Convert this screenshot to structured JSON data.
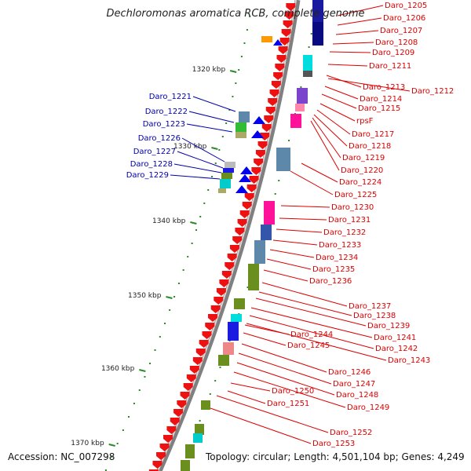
{
  "title": "Dechloromonas aromatica RCB, complete genome",
  "footer": {
    "accession_label": "Accession:",
    "accession": "NC_007298",
    "topology_label": "Topology:",
    "topology": "circular",
    "length_label": "Length:",
    "length": "4,501,104 bp",
    "genes_label": "Genes:",
    "genes": "4,249"
  },
  "colors": {
    "forward_strand": "#ee1111",
    "reverse_strand": "#0000ee",
    "backbone": "#808080",
    "tick": "#2a8a2a",
    "right_labels": "#dd0000",
    "left_labels": "#0000aa"
  },
  "scale_ticks": [
    "1320 kbp",
    "1330 kbp",
    "1340 kbp",
    "1350 kbp",
    "1360 kbp",
    "1370 kbp"
  ],
  "right_genes": [
    "Daro_1205",
    "Daro_1206",
    "Daro_1207",
    "Daro_1208",
    "Daro_1209",
    "Daro_1211",
    "Daro_1213",
    "Daro_1212",
    "Daro_1214",
    "Daro_1215",
    "rpsF",
    "Daro_1217",
    "Daro_1218",
    "Daro_1219",
    "Daro_1220",
    "Daro_1224",
    "Daro_1225",
    "Daro_1230",
    "Daro_1231",
    "Daro_1232",
    "Daro_1233",
    "Daro_1234",
    "Daro_1235",
    "Daro_1236",
    "Daro_1237",
    "Daro_1238",
    "Daro_1239",
    "Daro_1241",
    "Daro_1242",
    "Daro_1243",
    "Daro_1244",
    "Daro_1245",
    "Daro_1246",
    "Daro_1247",
    "Daro_1248",
    "Daro_1249",
    "Daro_1250",
    "Daro_1251",
    "Daro_1252",
    "Daro_1253"
  ],
  "left_genes": [
    "Daro_1221",
    "Daro_1222",
    "Daro_1223",
    "Daro_1226",
    "Daro_1227",
    "Daro_1228",
    "Daro_1229"
  ]
}
